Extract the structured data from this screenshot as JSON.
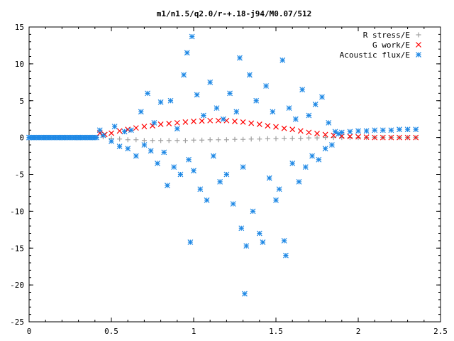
{
  "chart_data": {
    "type": "scatter",
    "title": "m1/n1.5/q2.0/r-+.18-j94/M0.07/512",
    "xlim": [
      0,
      2.5
    ],
    "ylim": [
      -25,
      15
    ],
    "x_ticks": [
      "0",
      "0.5",
      "1",
      "1.5",
      "2",
      "2.5"
    ],
    "y_ticks": [
      "15",
      "10",
      "5",
      "0",
      "-5",
      "-10",
      "-15",
      "-20",
      "-25"
    ],
    "legend_position": "top-right",
    "series": [
      {
        "name": "R stress/E",
        "color": "#a0a0a0",
        "marker": "plus",
        "points": [
          [
            0.45,
            0.1
          ],
          [
            0.5,
            -0.1
          ],
          [
            0.55,
            -0.2
          ],
          [
            0.6,
            -0.3
          ],
          [
            0.65,
            -0.3
          ],
          [
            0.7,
            -0.4
          ],
          [
            0.75,
            -0.4
          ],
          [
            0.8,
            -0.4
          ],
          [
            0.85,
            -0.4
          ],
          [
            0.9,
            -0.4
          ],
          [
            0.95,
            -0.4
          ],
          [
            1.0,
            -0.35
          ],
          [
            1.05,
            -0.35
          ],
          [
            1.1,
            -0.3
          ],
          [
            1.15,
            -0.3
          ],
          [
            1.2,
            -0.3
          ],
          [
            1.25,
            -0.25
          ],
          [
            1.3,
            -0.25
          ],
          [
            1.35,
            -0.2
          ],
          [
            1.4,
            -0.2
          ],
          [
            1.45,
            -0.15
          ],
          [
            1.5,
            -0.15
          ],
          [
            1.55,
            -0.1
          ],
          [
            1.6,
            -0.1
          ],
          [
            1.65,
            -0.1
          ],
          [
            1.7,
            -0.05
          ],
          [
            1.75,
            -0.05
          ],
          [
            1.8,
            0.0
          ],
          [
            1.85,
            0.0
          ],
          [
            1.9,
            0.0
          ],
          [
            1.95,
            0.0
          ],
          [
            2.0,
            0.0
          ],
          [
            2.05,
            0.0
          ],
          [
            2.1,
            0.0
          ],
          [
            2.15,
            0.0
          ],
          [
            2.2,
            0.0
          ],
          [
            2.25,
            0.0
          ],
          [
            2.3,
            0.0
          ],
          [
            2.35,
            0.0
          ]
        ]
      },
      {
        "name": "G work/E",
        "color": "#ff0000",
        "marker": "cross",
        "points": [
          [
            0.43,
            0.6
          ],
          [
            0.46,
            0.4
          ],
          [
            0.5,
            0.6
          ],
          [
            0.55,
            0.9
          ],
          [
            0.6,
            1.1
          ],
          [
            0.65,
            1.3
          ],
          [
            0.7,
            1.5
          ],
          [
            0.75,
            1.6
          ],
          [
            0.8,
            1.8
          ],
          [
            0.85,
            1.9
          ],
          [
            0.9,
            2.0
          ],
          [
            0.95,
            2.1
          ],
          [
            1.0,
            2.2
          ],
          [
            1.05,
            2.25
          ],
          [
            1.1,
            2.3
          ],
          [
            1.15,
            2.3
          ],
          [
            1.2,
            2.3
          ],
          [
            1.25,
            2.2
          ],
          [
            1.3,
            2.1
          ],
          [
            1.35,
            1.95
          ],
          [
            1.4,
            1.8
          ],
          [
            1.45,
            1.6
          ],
          [
            1.5,
            1.45
          ],
          [
            1.55,
            1.25
          ],
          [
            1.6,
            1.1
          ],
          [
            1.65,
            0.9
          ],
          [
            1.7,
            0.7
          ],
          [
            1.75,
            0.55
          ],
          [
            1.8,
            0.4
          ],
          [
            1.85,
            0.3
          ],
          [
            1.9,
            0.2
          ],
          [
            1.95,
            0.15
          ],
          [
            2.0,
            0.1
          ],
          [
            2.05,
            0.05
          ],
          [
            2.1,
            0.0
          ],
          [
            2.15,
            0.0
          ],
          [
            2.2,
            0.0
          ],
          [
            2.25,
            0.0
          ],
          [
            2.3,
            0.0
          ],
          [
            2.35,
            0.0
          ]
        ]
      },
      {
        "name": "Acoustic flux/E",
        "color": "#1e88e5",
        "marker": "star",
        "points": [
          [
            0.0,
            0.0
          ],
          [
            0.1,
            0.0
          ],
          [
            0.2,
            0.0
          ],
          [
            0.3,
            0.0
          ],
          [
            0.4,
            0.0
          ],
          [
            0.43,
            1.0
          ],
          [
            0.45,
            0.3
          ],
          [
            0.5,
            -0.5
          ],
          [
            0.52,
            1.5
          ],
          [
            0.55,
            -1.2
          ],
          [
            0.58,
            0.8
          ],
          [
            0.6,
            -1.5
          ],
          [
            0.62,
            1.0
          ],
          [
            0.65,
            -2.5
          ],
          [
            0.68,
            3.5
          ],
          [
            0.7,
            -1.0
          ],
          [
            0.72,
            6.0
          ],
          [
            0.74,
            -1.8
          ],
          [
            0.76,
            2.0
          ],
          [
            0.78,
            -3.5
          ],
          [
            0.8,
            4.8
          ],
          [
            0.82,
            -2.0
          ],
          [
            0.84,
            -6.5
          ],
          [
            0.86,
            5.0
          ],
          [
            0.88,
            -4.0
          ],
          [
            0.9,
            1.2
          ],
          [
            0.92,
            -5.0
          ],
          [
            0.94,
            8.5
          ],
          [
            0.96,
            11.5
          ],
          [
            0.97,
            -3.0
          ],
          [
            0.98,
            -14.2
          ],
          [
            0.99,
            13.7
          ],
          [
            1.0,
            -4.5
          ],
          [
            1.02,
            5.8
          ],
          [
            1.04,
            -7.0
          ],
          [
            1.06,
            3.0
          ],
          [
            1.08,
            -8.5
          ],
          [
            1.1,
            7.5
          ],
          [
            1.12,
            -2.5
          ],
          [
            1.14,
            4.0
          ],
          [
            1.16,
            -6.0
          ],
          [
            1.18,
            2.5
          ],
          [
            1.2,
            -5.0
          ],
          [
            1.22,
            6.0
          ],
          [
            1.24,
            -9.0
          ],
          [
            1.26,
            3.5
          ],
          [
            1.28,
            10.8
          ],
          [
            1.29,
            -12.3
          ],
          [
            1.3,
            -4.0
          ],
          [
            1.31,
            -21.2
          ],
          [
            1.32,
            -14.7
          ],
          [
            1.34,
            8.5
          ],
          [
            1.36,
            -10.0
          ],
          [
            1.38,
            5.0
          ],
          [
            1.4,
            -13.0
          ],
          [
            1.42,
            -14.2
          ],
          [
            1.44,
            7.0
          ],
          [
            1.46,
            -5.5
          ],
          [
            1.48,
            3.5
          ],
          [
            1.5,
            -8.5
          ],
          [
            1.52,
            -7.0
          ],
          [
            1.54,
            10.5
          ],
          [
            1.55,
            -14.0
          ],
          [
            1.56,
            -16.0
          ],
          [
            1.58,
            4.0
          ],
          [
            1.6,
            -3.5
          ],
          [
            1.62,
            2.5
          ],
          [
            1.64,
            -6.0
          ],
          [
            1.66,
            6.5
          ],
          [
            1.68,
            -4.0
          ],
          [
            1.7,
            3.0
          ],
          [
            1.72,
            -2.5
          ],
          [
            1.74,
            4.5
          ],
          [
            1.76,
            -3.0
          ],
          [
            1.78,
            5.5
          ],
          [
            1.8,
            -1.5
          ],
          [
            1.82,
            2.0
          ],
          [
            1.84,
            -1.0
          ],
          [
            1.86,
            0.8
          ],
          [
            1.88,
            0.5
          ],
          [
            1.9,
            0.7
          ],
          [
            1.95,
            0.8
          ],
          [
            2.0,
            0.9
          ],
          [
            2.05,
            0.9
          ],
          [
            2.1,
            1.0
          ],
          [
            2.15,
            1.0
          ],
          [
            2.2,
            1.0
          ],
          [
            2.25,
            1.1
          ],
          [
            2.3,
            1.1
          ],
          [
            2.35,
            1.1
          ]
        ]
      }
    ]
  }
}
